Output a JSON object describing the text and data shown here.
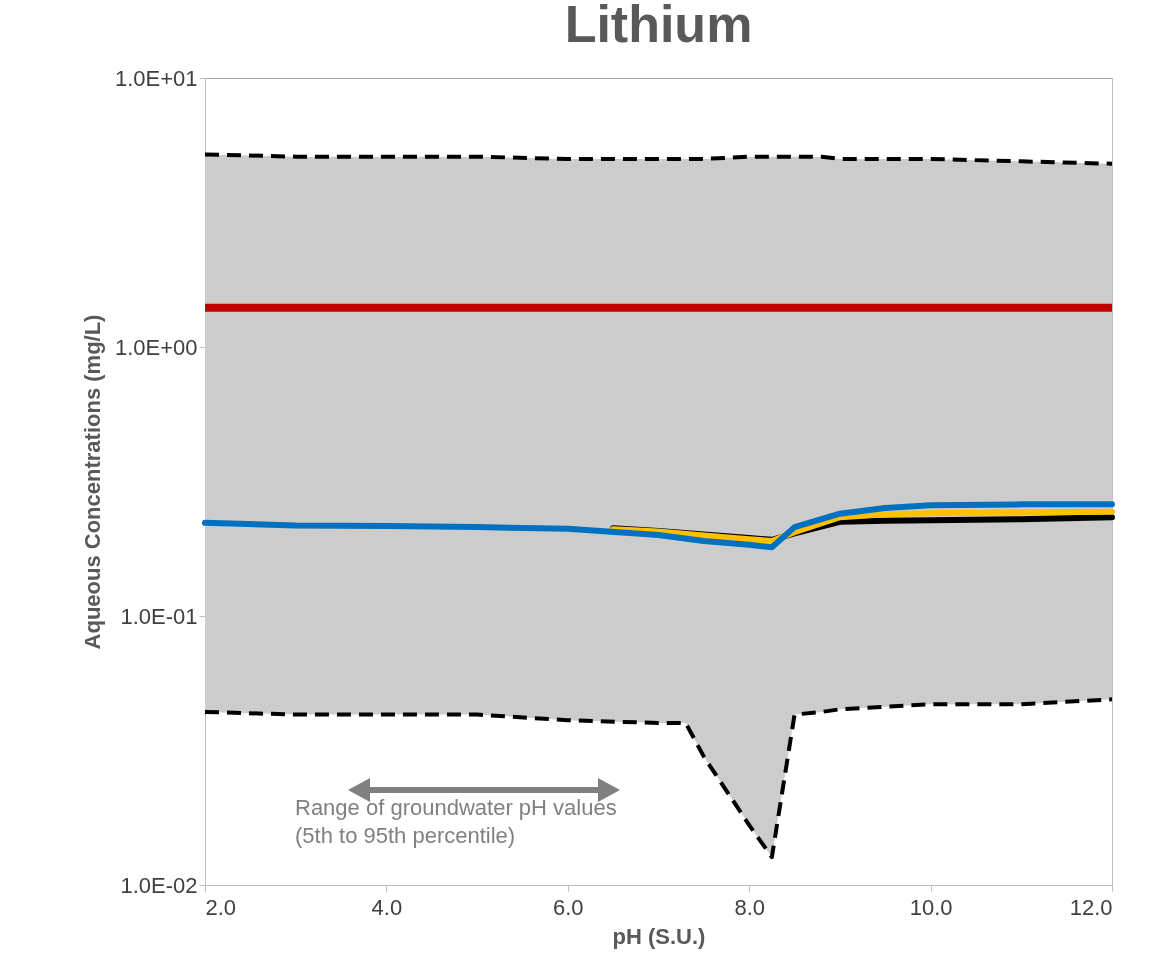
{
  "chart_data": {
    "type": "line",
    "title": "Lithium",
    "xlabel": "pH (S.U.)",
    "ylabel": "Aqueous Concentrations (mg/L)",
    "log": "y",
    "grid": "y",
    "xlim": [
      2,
      12
    ],
    "xticks": [
      {
        "value": 2,
        "label": "2.0"
      },
      {
        "value": 4,
        "label": "4.0"
      },
      {
        "value": 6,
        "label": "6.0"
      },
      {
        "value": 8,
        "label": "8.0"
      },
      {
        "value": 10,
        "label": "10.0"
      },
      {
        "value": 12,
        "label": "12.0"
      }
    ],
    "ylim": [
      0.01,
      10
    ],
    "yticks": [
      {
        "value": 0.01,
        "label": "1.0E-02"
      },
      {
        "value": 0.1,
        "label": "1.0E-01"
      },
      {
        "value": 1,
        "label": "1.0E+00"
      },
      {
        "value": 10,
        "label": "1.0E+01"
      }
    ],
    "series": [
      {
        "line_style": "dashed",
        "color": "#000000",
        "x": [
          2,
          3,
          4,
          5,
          6,
          7,
          7.3,
          7.5,
          8,
          8.25,
          8.5,
          8.8,
          9,
          9.5,
          10,
          11,
          12
        ],
        "values": [
          5.2,
          5.1,
          5.1,
          5.1,
          5.0,
          5.0,
          5.0,
          5.0,
          5.1,
          5.1,
          5.1,
          5.1,
          5.0,
          5.0,
          5.0,
          4.9,
          4.8
        ],
        "upper": [
          5.2,
          5.1,
          5.1,
          5.1,
          5.0,
          5.0,
          5.0,
          5.0,
          5.1,
          5.1,
          5.1,
          5.1,
          5.0,
          5.0,
          5.0,
          4.9,
          4.8
        ],
        "lower": [
          0.044,
          0.043,
          0.043,
          0.043,
          0.041,
          0.04,
          0.04,
          0.03,
          0.0167,
          0.0127,
          0.043,
          0.044,
          0.045,
          0.046,
          0.047,
          0.047,
          0.049
        ]
      },
      {
        "line_style": "dashed",
        "color": "#000000",
        "x": [
          2,
          3,
          4,
          5,
          6,
          7,
          7.3,
          7.5,
          8,
          8.25,
          8.5,
          8.8,
          9,
          9.5,
          10,
          11,
          12
        ],
        "values": [
          0.044,
          0.043,
          0.043,
          0.043,
          0.041,
          0.04,
          0.04,
          0.03,
          0.0167,
          0.0127,
          0.043,
          0.044,
          0.045,
          0.046,
          0.047,
          0.047,
          0.049
        ]
      },
      {
        "color": "#000000",
        "x": [
          6.5,
          7,
          7.5,
          8,
          8.25,
          8.5,
          9,
          9.5,
          10,
          11,
          12
        ],
        "values": [
          0.212,
          0.207,
          0.201,
          0.195,
          0.192,
          0.203,
          0.224,
          0.226,
          0.227,
          0.229,
          0.233
        ]
      },
      {
        "color": "#ffc000",
        "x": [
          6.5,
          7,
          7.5,
          8,
          8.25,
          8.5,
          9,
          9.5,
          10,
          11,
          12
        ],
        "values": [
          0.21,
          0.206,
          0.199,
          0.193,
          0.19,
          0.205,
          0.233,
          0.239,
          0.241,
          0.243,
          0.244
        ]
      },
      {
        "color": "#0070c0",
        "x": [
          2,
          3,
          4,
          5,
          6,
          7,
          7.5,
          8,
          8.25,
          8.5,
          9,
          9.5,
          10,
          11,
          12
        ],
        "values": [
          0.222,
          0.217,
          0.216,
          0.214,
          0.211,
          0.2,
          0.19,
          0.184,
          0.18,
          0.214,
          0.24,
          0.252,
          0.258,
          0.26,
          0.26
        ]
      }
    ],
    "ref_lines": [
      {
        "axis": "y",
        "value": 1.4,
        "color": "#c00000"
      }
    ],
    "annotations": [
      "Range of groundwater pH values\n(5th to 95th percentile)"
    ]
  }
}
